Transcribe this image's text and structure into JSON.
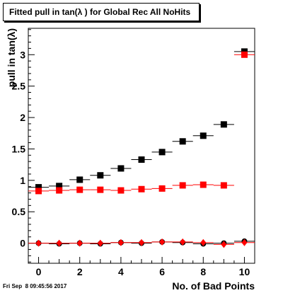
{
  "title": "Fitted pull in tan(λ ) for Global Rec All NoHits",
  "footer_date": "Fri Sep  8 09:45:56 2017",
  "chart_data": {
    "type": "scatter",
    "title": "Fitted pull in tan(λ ) for Global Rec All NoHits",
    "xlabel": "No. of Bad Points",
    "ylabel": "pull in tan(λ)",
    "xlim": [
      -0.5,
      10.5
    ],
    "ylim": [
      -0.32,
      3.42
    ],
    "x_ticks": [
      0,
      2,
      4,
      6,
      8,
      10
    ],
    "x_tick_labels": [
      "0",
      "2",
      "4",
      "6",
      "8",
      "10"
    ],
    "y_ticks": [
      0,
      0.5,
      1,
      1.5,
      2,
      2.5,
      3
    ],
    "y_tick_labels": [
      "0",
      "0.5",
      "1",
      "1.5",
      "2",
      "2.5",
      "3"
    ],
    "grid": false,
    "legend": "none",
    "x": [
      0,
      1,
      2,
      3,
      4,
      5,
      6,
      7,
      8,
      9,
      10
    ],
    "series": [
      {
        "marker": "square",
        "color": "#000000",
        "x_error": 0.5,
        "values": [
          0.89,
          0.91,
          1.01,
          1.08,
          1.19,
          1.33,
          1.45,
          1.62,
          1.71,
          1.89,
          3.05
        ]
      },
      {
        "marker": "square",
        "color": "#ff0000",
        "x_error": 0.5,
        "values": [
          0.83,
          0.84,
          0.85,
          0.85,
          0.84,
          0.86,
          0.87,
          0.92,
          0.93,
          0.92,
          3.0
        ]
      },
      {
        "marker": "circle",
        "color": "#000000",
        "x_error": 0.5,
        "values": [
          0.0,
          -0.01,
          0.0,
          -0.01,
          0.01,
          0.0,
          0.02,
          0.01,
          -0.01,
          0.0,
          0.03
        ]
      },
      {
        "marker": "diamond",
        "color": "#ff0000",
        "x_error": 0.5,
        "values": [
          0.0,
          0.0,
          0.0,
          0.0,
          0.01,
          0.01,
          0.02,
          0.02,
          0.01,
          -0.02,
          0.01
        ]
      }
    ]
  }
}
